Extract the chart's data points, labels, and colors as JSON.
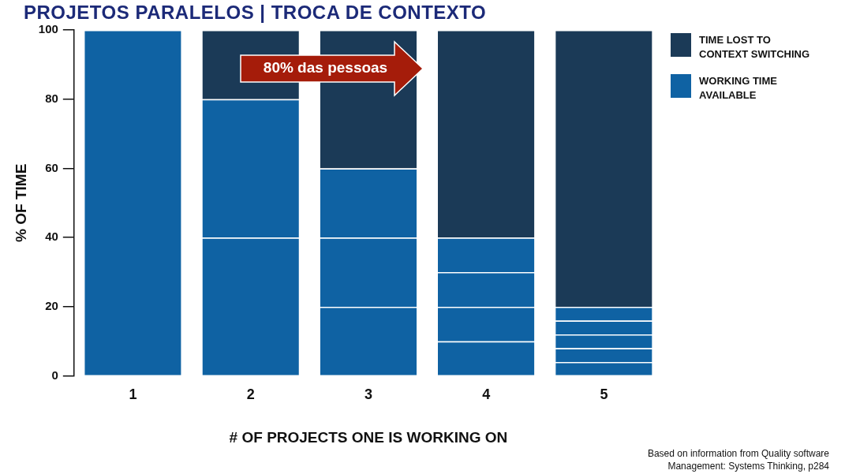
{
  "chart_data": {
    "type": "bar",
    "title": "PROJETOS PARALELOS | TROCA DE CONTEXTO",
    "xlabel": "# OF PROJECTS ONE IS WORKING ON",
    "ylabel": "% OF TIME",
    "categories": [
      "1",
      "2",
      "3",
      "4",
      "5"
    ],
    "stacked": true,
    "ylim": [
      0,
      100
    ],
    "yticks": [
      0,
      20,
      40,
      60,
      80,
      100
    ],
    "grid": false,
    "legend": "top right",
    "series": [
      {
        "name": "WORKING TIME AVAILABLE",
        "color": "#0f62a3",
        "values": [
          100,
          40,
          20,
          10,
          4
        ]
      },
      {
        "color": "#0f62a3",
        "values": [
          null,
          40,
          20,
          10,
          4
        ]
      },
      {
        "color": "#0f62a3",
        "values": [
          null,
          null,
          20,
          10,
          4
        ]
      },
      {
        "color": "#0f62a3",
        "values": [
          null,
          null,
          null,
          10,
          4
        ]
      },
      {
        "color": "#0f62a3",
        "values": [
          null,
          null,
          null,
          null,
          4
        ]
      },
      {
        "name": "TIME LOST TO CONTEXT SWITCHING",
        "color": "#1b3a57",
        "values": [
          null,
          20,
          40,
          60,
          80
        ]
      }
    ],
    "annotations": [
      "80% das pessoas",
      "Based on information from Quality software Management: Systems Thinking, p284"
    ]
  }
}
